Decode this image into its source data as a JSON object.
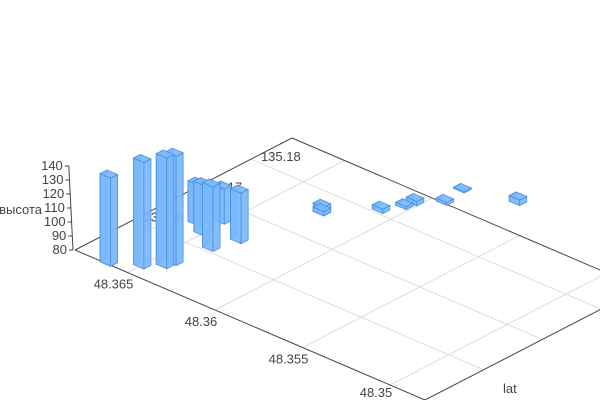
{
  "chart_data": {
    "type": "bar3d",
    "title": "",
    "xlabel": "",
    "ylabel": "lat",
    "zlabel": "высота",
    "xlim": [
      48.348,
      48.368
    ],
    "ylim": [
      135.15,
      135.187
    ],
    "zlim": [
      80,
      140
    ],
    "x_ticks": [
      "48.35",
      "48.355",
      "48.36",
      "48.365"
    ],
    "y_ticks": [
      "135.16",
      "135.17",
      "135.18"
    ],
    "z_ticks": [
      "80",
      "90",
      "100",
      "110",
      "120",
      "130",
      "140"
    ],
    "grid": true,
    "bar_color": "#7ab8fb",
    "bar_edge_color": "#4a8fe0",
    "points": [
      {
        "x": 48.3662,
        "y": 135.1504,
        "z": 143
      },
      {
        "x": 48.365,
        "y": 135.1525,
        "z": 156
      },
      {
        "x": 48.3643,
        "y": 135.1543,
        "z": 159
      },
      {
        "x": 48.3642,
        "y": 135.1556,
        "z": 158
      },
      {
        "x": 48.3659,
        "y": 135.1645,
        "z": 109
      },
      {
        "x": 48.3651,
        "y": 135.1631,
        "z": 116
      },
      {
        "x": 48.3652,
        "y": 135.1668,
        "z": 105
      },
      {
        "x": 48.3639,
        "y": 135.161,
        "z": 126
      },
      {
        "x": 48.3635,
        "y": 135.1646,
        "z": 116
      },
      {
        "x": 48.3626,
        "y": 135.176,
        "z": 86
      },
      {
        "x": 48.3626,
        "y": 135.176,
        "z": 83
      },
      {
        "x": 48.3609,
        "y": 135.181,
        "z": 83
      },
      {
        "x": 48.3604,
        "y": 135.1835,
        "z": 82
      },
      {
        "x": 48.3603,
        "y": 135.185,
        "z": 83
      },
      {
        "x": 48.3594,
        "y": 135.1874,
        "z": 82
      },
      {
        "x": 48.3596,
        "y": 135.191,
        "z": 81
      },
      {
        "x": 48.3571,
        "y": 135.193,
        "z": 84
      }
    ]
  }
}
